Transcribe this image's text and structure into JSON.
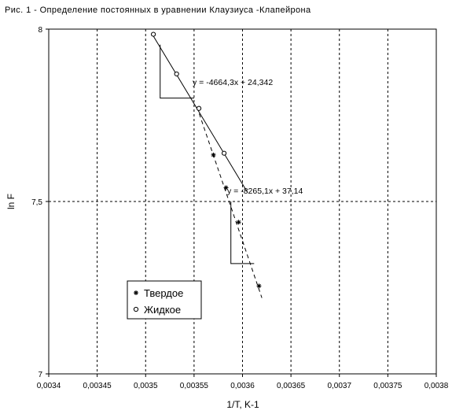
{
  "chart_data": {
    "type": "scatter",
    "title": "Рис. 1 - Определение постоянных в уравнении Клаузиуса -Клапейрона",
    "xlabel": "1/T, K-1",
    "ylabel": "ln F",
    "xlim": [
      0.0034,
      0.0038
    ],
    "ylim": [
      7,
      8
    ],
    "x_ticks": [
      0.0034,
      0.00345,
      0.0035,
      0.00355,
      0.0036,
      0.00365,
      0.0037,
      0.00375,
      0.0038
    ],
    "x_tick_labels": [
      "0,0034",
      "0,00345",
      "0,0035",
      "0,00355",
      "0,0036",
      "0,00365",
      "0,0037",
      "0,00375",
      "0,0038"
    ],
    "y_ticks": [
      7,
      7.5,
      8
    ],
    "y_tick_labels": [
      "7",
      "7,5",
      "8"
    ],
    "grid": true,
    "legend_position": "bottom-left",
    "series": [
      {
        "name": "Твердое",
        "marker": "asterisk",
        "line": "dashed",
        "color": "#000000",
        "points": [
          [
            0.003555,
            7.77
          ],
          [
            0.00357,
            7.635
          ],
          [
            0.003583,
            7.54
          ],
          [
            0.003596,
            7.44
          ],
          [
            0.003617,
            7.255
          ]
        ],
        "trend_x": [
          0.003553,
          0.00362
        ],
        "equation": "y = -8265,1x + 37,14"
      },
      {
        "name": "Жидкое",
        "marker": "circle",
        "line": "solid",
        "color": "#000000",
        "points": [
          [
            0.003508,
            7.985
          ],
          [
            0.003532,
            7.87
          ],
          [
            0.003555,
            7.77
          ],
          [
            0.003581,
            7.64
          ]
        ],
        "trend_x": [
          0.003508,
          0.003605
        ],
        "equation": "y = -4664,3x + 24,342"
      }
    ],
    "slope_triangles": [
      {
        "x": [
          0.003515,
          0.00355
        ],
        "y": [
          7.8,
          7.955
        ]
      },
      {
        "x": [
          0.003588,
          0.003612
        ],
        "y": [
          7.32,
          7.5
        ]
      }
    ]
  }
}
